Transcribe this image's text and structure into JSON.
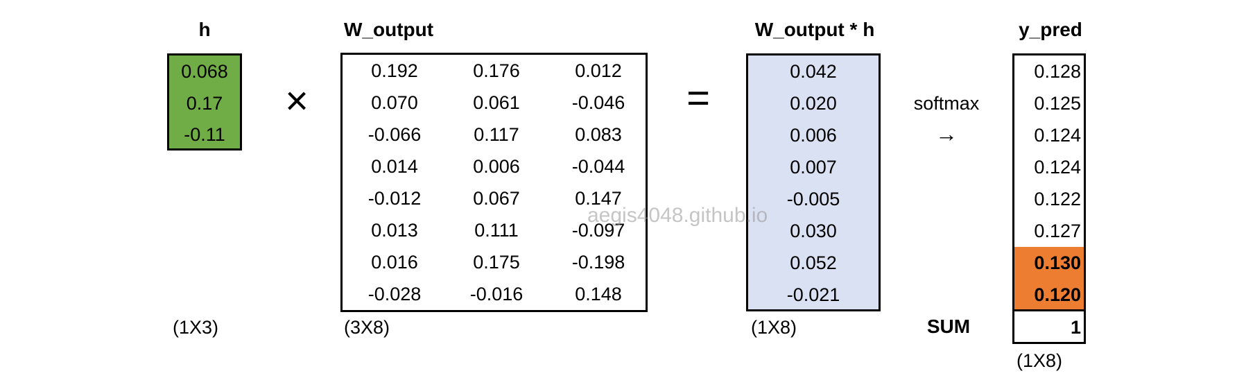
{
  "h": {
    "title": "h",
    "values": [
      "0.068",
      "0.17",
      "-0.11"
    ],
    "dim": "(1X3)",
    "color": "#70ad47"
  },
  "operators": {
    "times": "×",
    "equals": "="
  },
  "w_output": {
    "title": "W_output",
    "dim": "(3X8)",
    "rows": [
      [
        "0.192",
        "0.176",
        "0.012"
      ],
      [
        "0.070",
        "0.061",
        "-0.046"
      ],
      [
        "-0.066",
        "0.117",
        "0.083"
      ],
      [
        "0.014",
        "0.006",
        "-0.044"
      ],
      [
        "-0.012",
        "0.067",
        "0.147"
      ],
      [
        "0.013",
        "0.111",
        "-0.097"
      ],
      [
        "0.016",
        "0.175",
        "-0.198"
      ],
      [
        "-0.028",
        "-0.016",
        "0.148"
      ]
    ]
  },
  "product": {
    "title": "W_output * h",
    "dim": "(1X8)",
    "values": [
      "0.042",
      "0.020",
      "0.006",
      "0.007",
      "-0.005",
      "0.030",
      "0.052",
      "-0.021"
    ],
    "color": "#dae1f3"
  },
  "softmax": {
    "label": "softmax",
    "arrow": "→"
  },
  "y_pred": {
    "title": "y_pred",
    "dim": "(1X8)",
    "values": [
      "0.128",
      "0.125",
      "0.124",
      "0.124",
      "0.122",
      "0.127",
      "0.130",
      "0.120"
    ],
    "highlighted_rows": [
      6,
      7
    ],
    "highlight_color": "#ed7d31",
    "sum_label": "SUM",
    "sum_value": "1"
  },
  "watermark": "aegis4048.github.io"
}
